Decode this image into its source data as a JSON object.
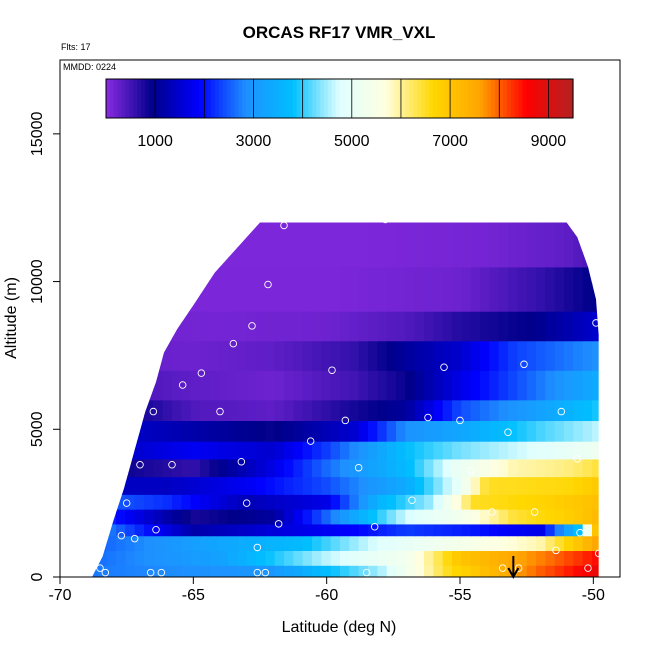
{
  "chart_data": {
    "type": "heatmap",
    "title": "ORCAS RF17 VMR_VXL",
    "flights_label": "Flts: 17",
    "date_label": "MMDD: 0224",
    "xlabel": "Latitude (deg N)",
    "ylabel": "Altitude (m)",
    "xlim": [
      -70,
      -49
    ],
    "ylim": [
      0,
      17500
    ],
    "x_ticks": [
      -70,
      -65,
      -60,
      -55,
      -50
    ],
    "y_ticks": [
      0,
      5000,
      10000,
      15000
    ],
    "colorbar": {
      "range": [
        0,
        9500
      ],
      "ticks": [
        1000,
        3000,
        5000,
        7000,
        9000
      ],
      "colors": [
        "#8a2be2",
        "#00008b",
        "#0000ff",
        "#1e90ff",
        "#00bfff",
        "#e0ffff",
        "#ffffe0",
        "#ffd700",
        "#ffa500",
        "#ff0000",
        "#b22222"
      ]
    },
    "arrow_latitude": -53,
    "envelope": [
      [
        -68.8,
        0
      ],
      [
        -68.4,
        700
      ],
      [
        -68.0,
        1900
      ],
      [
        -67.6,
        3000
      ],
      [
        -67.2,
        4300
      ],
      [
        -66.8,
        5600
      ],
      [
        -66.4,
        6600
      ],
      [
        -66.1,
        7600
      ],
      [
        -65.6,
        8400
      ],
      [
        -65.0,
        9200
      ],
      [
        -64.2,
        10300
      ],
      [
        -63.3,
        11200
      ],
      [
        -62.5,
        12000
      ],
      [
        -51.0,
        12000
      ],
      [
        -50.6,
        11500
      ],
      [
        -50.2,
        10500
      ],
      [
        -49.9,
        9400
      ],
      [
        -49.8,
        8200
      ],
      [
        -49.8,
        0
      ]
    ],
    "bands": [
      {
        "y": [
          0,
          400
        ],
        "stops": [
          [
            -68.8,
            2700
          ],
          [
            -62,
            3000
          ],
          [
            -58,
            4500
          ],
          [
            -55.5,
            6500
          ],
          [
            -52,
            8000
          ],
          [
            -49.8,
            8800
          ]
        ]
      },
      {
        "y": [
          400,
          900
        ],
        "stops": [
          [
            -68.8,
            2600
          ],
          [
            -64,
            3200
          ],
          [
            -60,
            4600
          ],
          [
            -57,
            5300
          ],
          [
            -55,
            7000
          ],
          [
            -52,
            7800
          ],
          [
            -49.8,
            8500
          ]
        ]
      },
      {
        "y": [
          900,
          1400
        ],
        "stops": [
          [
            -68.8,
            2500
          ],
          [
            -64,
            3300
          ],
          [
            -61,
            3700
          ],
          [
            -58,
            4800
          ],
          [
            -55,
            5400
          ],
          [
            -52,
            5900
          ],
          [
            -49.8,
            7600
          ]
        ]
      },
      {
        "y": [
          1400,
          1800
        ],
        "stops": [
          [
            -68.8,
            3000
          ],
          [
            -65,
            1200
          ],
          [
            -62,
            1600
          ],
          [
            -59,
            1900
          ],
          [
            -57,
            2300
          ],
          [
            -55,
            2100
          ],
          [
            -52,
            1700
          ],
          [
            -50.5,
            3900
          ],
          [
            -49.8,
            7400
          ]
        ]
      },
      {
        "y": [
          1800,
          2300
        ],
        "stops": [
          [
            -68.8,
            2400
          ],
          [
            -65,
            800
          ],
          [
            -62,
            1100
          ],
          [
            -59,
            3300
          ],
          [
            -57,
            4700
          ],
          [
            -55,
            5300
          ],
          [
            -53,
            6400
          ],
          [
            -51,
            6800
          ],
          [
            -49.8,
            7200
          ]
        ]
      },
      {
        "y": [
          2300,
          2800
        ],
        "stops": [
          [
            -68.8,
            2600
          ],
          [
            -66,
            2200
          ],
          [
            -63,
            1300
          ],
          [
            -60,
            1700
          ],
          [
            -58,
            3600
          ],
          [
            -56,
            4500
          ],
          [
            -54.5,
            6500
          ],
          [
            -52,
            6700
          ],
          [
            -49.8,
            7100
          ]
        ]
      },
      {
        "y": [
          2800,
          3400
        ],
        "stops": [
          [
            -68.8,
            1400
          ],
          [
            -66,
            1400
          ],
          [
            -63,
            1800
          ],
          [
            -60,
            2400
          ],
          [
            -57,
            3400
          ],
          [
            -55,
            5000
          ],
          [
            -54,
            6500
          ],
          [
            -51,
            6600
          ],
          [
            -49.8,
            6900
          ]
        ]
      },
      {
        "y": [
          3400,
          4000
        ],
        "stops": [
          [
            -68.8,
            1000
          ],
          [
            -65,
            600
          ],
          [
            -62,
            1700
          ],
          [
            -60,
            2600
          ],
          [
            -57,
            3700
          ],
          [
            -55,
            5100
          ],
          [
            -53,
            5900
          ],
          [
            -51,
            6100
          ],
          [
            -49.8,
            6400
          ]
        ]
      },
      {
        "y": [
          4000,
          4600
        ],
        "stops": [
          [
            -68.8,
            1300
          ],
          [
            -65,
            1800
          ],
          [
            -62,
            1500
          ],
          [
            -60,
            2300
          ],
          [
            -57,
            3800
          ],
          [
            -55,
            4300
          ],
          [
            -52,
            4800
          ],
          [
            -49.8,
            5200
          ]
        ]
      },
      {
        "y": [
          4600,
          5300
        ],
        "stops": [
          [
            -68.8,
            1600
          ],
          [
            -65,
            1200
          ],
          [
            -62,
            900
          ],
          [
            -59,
            1500
          ],
          [
            -57,
            2900
          ],
          [
            -55,
            3300
          ],
          [
            -52,
            4100
          ],
          [
            -49.8,
            4600
          ]
        ]
      },
      {
        "y": [
          5300,
          6000
        ],
        "stops": [
          [
            -68.8,
            1200
          ],
          [
            -65,
            400
          ],
          [
            -62,
            300
          ],
          [
            -59,
            800
          ],
          [
            -57,
            1100
          ],
          [
            -55,
            2400
          ],
          [
            -52,
            3200
          ],
          [
            -49.8,
            3900
          ]
        ]
      },
      {
        "y": [
          6000,
          7000
        ],
        "stops": [
          [
            -68.8,
            500
          ],
          [
            -65,
            300
          ],
          [
            -62,
            200
          ],
          [
            -59,
            500
          ],
          [
            -57,
            900
          ],
          [
            -55,
            1700
          ],
          [
            -52,
            2700
          ],
          [
            -49.8,
            3400
          ]
        ]
      },
      {
        "y": [
          7000,
          8000
        ],
        "stops": [
          [
            -68.8,
            300
          ],
          [
            -65,
            200
          ],
          [
            -62,
            300
          ],
          [
            -59,
            600
          ],
          [
            -57,
            1100
          ],
          [
            -55,
            1500
          ],
          [
            -53,
            2300
          ],
          [
            -49.8,
            2900
          ]
        ]
      },
      {
        "y": [
          8000,
          9000
        ],
        "stops": [
          [
            -68.8,
            200
          ],
          [
            -64,
            150
          ],
          [
            -60,
            200
          ],
          [
            -57,
            400
          ],
          [
            -55,
            700
          ],
          [
            -52,
            1000
          ],
          [
            -49.8,
            1500
          ]
        ]
      },
      {
        "y": [
          9000,
          10500
        ],
        "stops": [
          [
            -68.8,
            100
          ],
          [
            -60,
            100
          ],
          [
            -55,
            200
          ],
          [
            -52,
            600
          ],
          [
            -49.8,
            1000
          ]
        ]
      },
      {
        "y": [
          10500,
          12000
        ],
        "stops": [
          [
            -68.8,
            80
          ],
          [
            -58,
            100
          ],
          [
            -54,
            150
          ],
          [
            -51,
            300
          ],
          [
            -49.8,
            500
          ]
        ]
      }
    ],
    "points": [
      [
        -68.5,
        300
      ],
      [
        -68.3,
        150
      ],
      [
        -67.7,
        1400
      ],
      [
        -67.2,
        1300
      ],
      [
        -66.4,
        1600
      ],
      [
        -65.8,
        3800
      ],
      [
        -67.5,
        2500
      ],
      [
        -66.6,
        150
      ],
      [
        -66.2,
        150
      ],
      [
        -62.6,
        150
      ],
      [
        -62.3,
        150
      ],
      [
        -58.5,
        150
      ],
      [
        -67.0,
        3800
      ],
      [
        -66.5,
        5600
      ],
      [
        -65.4,
        6500
      ],
      [
        -64.7,
        6900
      ],
      [
        -64.0,
        5600
      ],
      [
        -63.0,
        2500
      ],
      [
        -63.5,
        7900
      ],
      [
        -62.8,
        8500
      ],
      [
        -62.2,
        9900
      ],
      [
        -61.6,
        11900
      ],
      [
        -63.2,
        3900
      ],
      [
        -62.6,
        1000
      ],
      [
        -61.8,
        1800
      ],
      [
        -60.6,
        4600
      ],
      [
        -59.8,
        7000
      ],
      [
        -59.3,
        5300
      ],
      [
        -58.8,
        3700
      ],
      [
        -58.2,
        1700
      ],
      [
        -57.8,
        12100
      ],
      [
        -56.8,
        2600
      ],
      [
        -56.2,
        5400
      ],
      [
        -55.6,
        7100
      ],
      [
        -55.0,
        5300
      ],
      [
        -54.6,
        3600
      ],
      [
        -54.4,
        12300
      ],
      [
        -53.8,
        2200
      ],
      [
        -53.2,
        4900
      ],
      [
        -52.6,
        7200
      ],
      [
        -52.2,
        2200
      ],
      [
        -51.2,
        5600
      ],
      [
        -50.6,
        4000
      ],
      [
        -50.4,
        11900
      ],
      [
        -49.9,
        8600
      ],
      [
        -50.2,
        300
      ],
      [
        -51.4,
        900
      ],
      [
        -52.8,
        300
      ],
      [
        -53.4,
        300
      ],
      [
        -49.8,
        800
      ],
      [
        -50.5,
        1500
      ]
    ]
  }
}
